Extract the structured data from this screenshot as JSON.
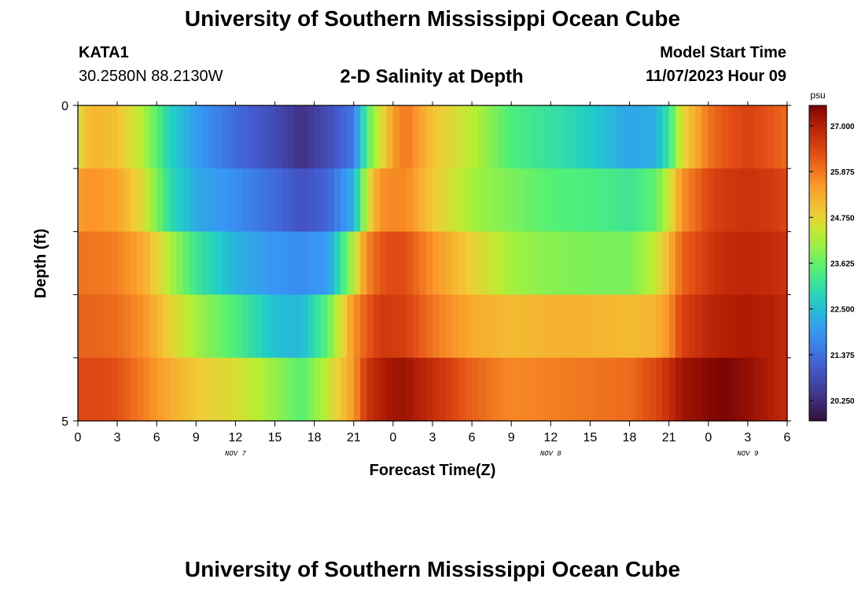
{
  "header": {
    "title": "University of Southern Mississippi Ocean Cube",
    "station_name": "KATA1",
    "coordinates": "30.2580N  88.2130W",
    "chart_title": "2-D Salinity at Depth",
    "model_label": "Model Start Time",
    "model_time": "11/07/2023 Hour 09"
  },
  "footer": {
    "title": "University of Southern Mississippi Ocean Cube"
  },
  "chart_data": {
    "type": "heatmap",
    "title": "2-D Salinity at Depth",
    "xlabel": "Forecast Time(Z)",
    "ylabel": "Depth (ft)",
    "xlim": [
      0,
      54
    ],
    "ylim": [
      0,
      5
    ],
    "x_tick_values": [
      0,
      3,
      6,
      9,
      12,
      15,
      18,
      21,
      24,
      27,
      30,
      33,
      36,
      39,
      42,
      45,
      48,
      51,
      54
    ],
    "x_tick_labels": [
      "0",
      "3",
      "6",
      "9",
      "12",
      "15",
      "18",
      "21",
      "0",
      "3",
      "6",
      "9",
      "12",
      "15",
      "18",
      "21",
      "0",
      "3",
      "6"
    ],
    "y_tick_labels": [
      "0",
      "5"
    ],
    "date_labels": [
      {
        "label": "NOV 7",
        "x": 12
      },
      {
        "label": "NOV 8",
        "x": 36
      },
      {
        "label": "NOV 9",
        "x": 51
      }
    ],
    "colorbar": {
      "unit": "psu",
      "min": 19.75,
      "max": 27.5,
      "ticks": [
        "27.000",
        "25.875",
        "24.750",
        "23.625",
        "22.500",
        "21.375",
        "20.250"
      ]
    },
    "depth_bins": [
      0,
      1,
      2,
      3,
      4,
      5
    ],
    "keyframe_hours": [
      0,
      1,
      3,
      5,
      7,
      9,
      12,
      15,
      17,
      19,
      21,
      22,
      23,
      24,
      25,
      27,
      30,
      33,
      36,
      39,
      42,
      44,
      45,
      46,
      48,
      49,
      51,
      53,
      54
    ],
    "salinity_keyframes": [
      [
        24.6,
        25.2,
        25.0,
        24.2,
        22.8,
        22.0,
        21.3,
        20.8,
        20.3,
        20.8,
        21.5,
        23.5,
        24.5,
        25.5,
        25.9,
        25.0,
        24.3,
        23.4,
        23.1,
        22.7,
        22.1,
        22.3,
        23.2,
        24.7,
        25.9,
        26.2,
        26.5,
        26.2,
        26.0
      ],
      [
        25.5,
        25.6,
        25.4,
        24.6,
        23.0,
        22.2,
        21.8,
        21.3,
        20.9,
        21.2,
        22.3,
        24.5,
        25.6,
        25.7,
        25.7,
        24.9,
        24.1,
        23.8,
        23.5,
        23.4,
        23.2,
        23.6,
        24.5,
        25.6,
        26.4,
        26.6,
        26.7,
        26.6,
        26.4
      ],
      [
        25.9,
        25.9,
        25.8,
        25.3,
        24.2,
        23.2,
        22.3,
        21.9,
        21.8,
        22.0,
        24.3,
        25.7,
        26.2,
        26.4,
        26.3,
        25.6,
        24.8,
        24.1,
        23.9,
        23.8,
        23.8,
        24.4,
        25.2,
        26.1,
        26.6,
        26.8,
        26.9,
        26.8,
        26.7
      ],
      [
        26.1,
        26.1,
        26.0,
        25.6,
        24.8,
        24.1,
        23.4,
        22.5,
        22.4,
        23.6,
        25.6,
        26.2,
        26.6,
        26.6,
        26.5,
        25.9,
        25.3,
        25.1,
        25.2,
        25.2,
        25.1,
        25.2,
        25.6,
        26.5,
        26.9,
        27.0,
        27.1,
        27.0,
        26.8
      ],
      [
        26.4,
        26.4,
        26.3,
        25.8,
        25.3,
        24.9,
        24.6,
        24.0,
        23.5,
        24.4,
        25.5,
        26.7,
        27.0,
        27.2,
        27.2,
        26.8,
        26.1,
        25.7,
        25.8,
        25.9,
        26.0,
        26.4,
        26.8,
        27.2,
        27.4,
        27.5,
        27.3,
        27.0,
        26.8
      ]
    ]
  }
}
